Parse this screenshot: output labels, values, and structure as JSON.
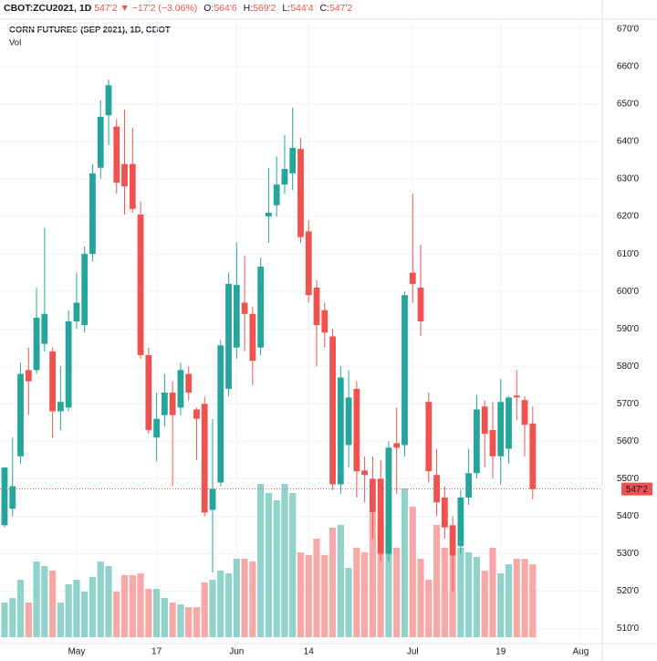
{
  "header": {
    "symbol": "CBOT:ZCU2021, 1D",
    "last": "547'2",
    "direction": "▼",
    "change": "−17'2 (−3.06%)",
    "ohlc": [
      {
        "label": "O:",
        "value": "564'6"
      },
      {
        "label": "H:",
        "value": "569'2"
      },
      {
        "label": "L:",
        "value": "544'4"
      },
      {
        "label": "C:",
        "value": "547'2"
      }
    ]
  },
  "chart_data": {
    "type": "candlestick",
    "title": "CORN FUTURES (SEP 2021), 1D, CBOT",
    "subtitle": "Vol",
    "categories": [
      null,
      null,
      null,
      null,
      null,
      null,
      null,
      null,
      null,
      "May",
      null,
      null,
      null,
      null,
      null,
      null,
      null,
      null,
      null,
      "17",
      null,
      null,
      null,
      null,
      null,
      null,
      null,
      null,
      null,
      "Jun",
      null,
      null,
      null,
      null,
      null,
      null,
      null,
      null,
      "14",
      null,
      null,
      null,
      null,
      null,
      null,
      null,
      null,
      null,
      null,
      null,
      null,
      "Jul",
      null,
      null,
      null,
      null,
      null,
      null,
      null,
      null,
      null,
      null,
      "19",
      null,
      null,
      null,
      null,
      null,
      null,
      null,
      null,
      null,
      "Aug",
      null,
      null
    ],
    "open": [
      537.6,
      542,
      556,
      579,
      579,
      586,
      584,
      568,
      569,
      592,
      591,
      610,
      633,
      647,
      644,
      634,
      634,
      620.5,
      583,
      561,
      567,
      573,
      569,
      578,
      568.5,
      570,
      541.7,
      549,
      574,
      585,
      597,
      594,
      585,
      620,
      623,
      628.5,
      631.5,
      638,
      616,
      601,
      595,
      588,
      548.5,
      559,
      574,
      552.2,
      550,
      550,
      530,
      559.5,
      559,
      605,
      601,
      570.5,
      551,
      545,
      537.6,
      532,
      545,
      551.5,
      569.3,
      563,
      556,
      558,
      572.2,
      571,
      564.75,
      null,
      null,
      null,
      null,
      null,
      null,
      null,
      null
    ],
    "high": [
      553,
      561,
      581,
      585,
      601,
      617,
      585,
      580,
      595,
      605,
      612,
      634,
      651,
      656.5,
      646,
      648.5,
      643.7,
      624,
      585,
      573,
      578,
      576,
      581,
      580,
      569,
      572,
      566,
      587,
      605,
      613,
      609.5,
      596,
      609,
      633,
      636,
      641.7,
      649,
      641,
      619,
      603,
      597,
      590,
      580,
      579,
      576,
      556,
      556,
      555,
      560,
      569,
      600,
      626,
      612.5,
      573,
      558,
      548,
      540,
      547,
      558,
      572.4,
      571,
      570.5,
      576.6,
      572,
      579,
      572,
      569.25,
      null,
      null,
      null,
      null,
      null,
      null,
      null,
      null
    ],
    "low": [
      537,
      540,
      554,
      567,
      578,
      584,
      561,
      563,
      568,
      590,
      589,
      608,
      630,
      639,
      626,
      620.5,
      621,
      582,
      562,
      554.6,
      564,
      548,
      567,
      571,
      555,
      540,
      525,
      548,
      572,
      582,
      584,
      575,
      583,
      613,
      620,
      626,
      627,
      613,
      597,
      580,
      585,
      547,
      546,
      553,
      545,
      543.7,
      534,
      528,
      528,
      546,
      556,
      597,
      588,
      549,
      540,
      534,
      520,
      530,
      543,
      550,
      553,
      550,
      548.5,
      554,
      565.6,
      556,
      544.5,
      null,
      null,
      null,
      null,
      null,
      null,
      null,
      null
    ],
    "close": [
      553,
      548,
      578,
      576,
      593,
      594,
      568,
      570.5,
      592,
      597,
      610,
      631.5,
      646.6,
      655,
      629,
      628,
      622,
      583,
      563,
      566,
      573,
      567,
      579,
      573,
      566,
      541,
      547.3,
      585.6,
      602,
      601.7,
      594,
      581.5,
      606.6,
      621,
      628.5,
      632.7,
      638.3,
      614.5,
      599,
      591,
      589,
      548.5,
      577,
      571.7,
      552,
      551,
      541,
      530,
      558.3,
      558.3,
      599,
      602,
      592,
      552,
      543.7,
      537,
      529.5,
      545,
      551.5,
      568.5,
      562,
      556,
      570.5,
      571.7,
      571.7,
      564.4,
      547.25,
      null,
      null,
      null,
      null,
      null,
      null,
      null,
      null
    ],
    "volume": [
      38,
      43,
      63,
      38,
      83,
      78,
      73,
      38,
      58,
      63,
      50,
      66,
      83,
      78,
      50,
      68,
      68,
      70,
      53,
      53,
      43,
      38,
      36,
      33,
      33,
      60,
      63,
      73,
      70,
      86,
      86,
      83,
      168,
      158,
      150,
      168,
      158,
      93,
      90,
      108,
      90,
      120,
      123,
      76,
      98,
      93,
      136,
      128,
      123,
      98,
      163,
      143,
      86,
      63,
      123,
      98,
      90,
      98,
      93,
      88,
      73,
      98,
      70,
      80,
      86,
      86,
      80,
      null,
      null,
      null,
      null,
      null,
      null,
      null,
      null
    ],
    "volume_lim": [
      0,
      200
    ],
    "ylim": [
      506,
      672.4
    ],
    "yticks": [
      {
        "value": 510,
        "label": "510'0"
      },
      {
        "value": 520,
        "label": "520'0"
      },
      {
        "value": 530,
        "label": "530'0"
      },
      {
        "value": 540,
        "label": "540'0"
      },
      {
        "value": 550,
        "label": "550'0"
      },
      {
        "value": 560,
        "label": "560'0"
      },
      {
        "value": 570,
        "label": "570'0"
      },
      {
        "value": 580,
        "label": "580'0"
      },
      {
        "value": 590,
        "label": "590'0"
      },
      {
        "value": 600,
        "label": "600'0"
      },
      {
        "value": 610,
        "label": "610'0"
      },
      {
        "value": 620,
        "label": "620'0"
      },
      {
        "value": 630,
        "label": "630'0"
      },
      {
        "value": 640,
        "label": "640'0"
      },
      {
        "value": 650,
        "label": "650'0"
      },
      {
        "value": 660,
        "label": "660'0"
      },
      {
        "value": 670,
        "label": "670'0"
      }
    ],
    "last_price_label": "547'2",
    "up_color": "#26a69a",
    "down_color": "#ef5350",
    "up_volume_color": "#92d2cc",
    "down_volume_color": "#f7a9a7",
    "grid": true
  }
}
